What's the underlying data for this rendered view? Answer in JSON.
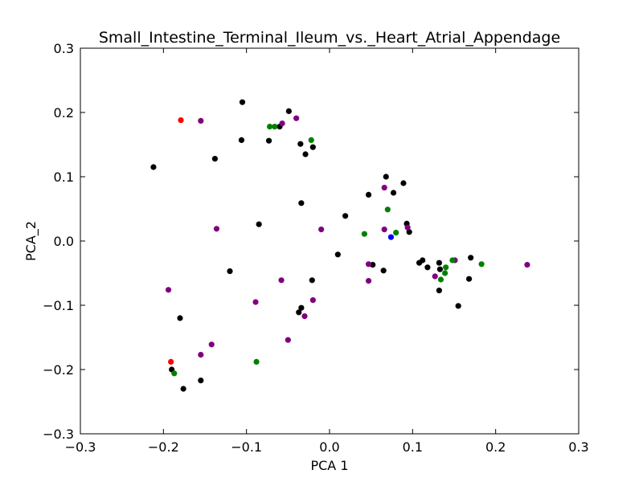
{
  "chart_data": {
    "type": "scatter",
    "title": "Small_Intestine_Terminal_Ileum_vs._Heart_Atrial_Appendage",
    "xlabel": "PCA 1",
    "ylabel": "PCA_2",
    "xlim": [
      -0.3,
      0.3
    ],
    "ylim": [
      -0.3,
      0.3
    ],
    "xticks": [
      -0.3,
      -0.2,
      -0.1,
      0.0,
      0.1,
      0.2,
      0.3
    ],
    "yticks": [
      -0.3,
      -0.2,
      -0.1,
      0.0,
      0.1,
      0.2,
      0.3
    ],
    "xtick_labels": [
      "−0.3",
      "−0.2",
      "−0.1",
      "0.0",
      "0.1",
      "0.2",
      "0.3"
    ],
    "ytick_labels": [
      "−0.3",
      "−0.2",
      "−0.1",
      "0.0",
      "0.1",
      "0.2",
      "0.3"
    ],
    "grid": false,
    "legend": "none",
    "series": [
      {
        "color": "#000000",
        "points": [
          [
            -0.105,
            0.216
          ],
          [
            -0.049,
            0.202
          ],
          [
            -0.06,
            0.178
          ],
          [
            -0.073,
            0.156
          ],
          [
            -0.106,
            0.157
          ],
          [
            -0.035,
            0.151
          ],
          [
            -0.02,
            0.146
          ],
          [
            -0.029,
            0.135
          ],
          [
            -0.138,
            0.128
          ],
          [
            -0.212,
            0.115
          ],
          [
            0.068,
            0.1
          ],
          [
            0.089,
            0.09
          ],
          [
            0.077,
            0.075
          ],
          [
            0.047,
            0.072
          ],
          [
            -0.034,
            0.059
          ],
          [
            0.019,
            0.039
          ],
          [
            -0.085,
            0.026
          ],
          [
            0.093,
            0.027
          ],
          [
            0.096,
            0.014
          ],
          [
            0.01,
            -0.021
          ],
          [
            0.17,
            -0.026
          ],
          [
            0.112,
            -0.03
          ],
          [
            0.108,
            -0.034
          ],
          [
            0.132,
            -0.034
          ],
          [
            0.052,
            -0.037
          ],
          [
            0.118,
            -0.041
          ],
          [
            0.133,
            -0.044
          ],
          [
            0.065,
            -0.046
          ],
          [
            -0.12,
            -0.047
          ],
          [
            0.168,
            -0.059
          ],
          [
            -0.021,
            -0.061
          ],
          [
            0.132,
            -0.077
          ],
          [
            0.155,
            -0.101
          ],
          [
            -0.034,
            -0.104
          ],
          [
            -0.037,
            -0.111
          ],
          [
            -0.18,
            -0.12
          ],
          [
            -0.19,
            -0.2
          ],
          [
            -0.155,
            -0.217
          ],
          [
            -0.176,
            -0.23
          ]
        ]
      },
      {
        "color": "#800080",
        "points": [
          [
            -0.155,
            0.187
          ],
          [
            -0.04,
            0.191
          ],
          [
            -0.057,
            0.183
          ],
          [
            0.066,
            0.083
          ],
          [
            -0.136,
            0.019
          ],
          [
            -0.01,
            0.018
          ],
          [
            0.066,
            0.018
          ],
          [
            0.094,
            0.021
          ],
          [
            0.047,
            -0.036
          ],
          [
            0.151,
            -0.03
          ],
          [
            0.238,
            -0.037
          ],
          [
            0.127,
            -0.055
          ],
          [
            0.047,
            -0.062
          ],
          [
            -0.058,
            -0.061
          ],
          [
            -0.194,
            -0.076
          ],
          [
            -0.089,
            -0.095
          ],
          [
            -0.02,
            -0.092
          ],
          [
            -0.03,
            -0.117
          ],
          [
            -0.05,
            -0.154
          ],
          [
            -0.142,
            -0.161
          ],
          [
            -0.155,
            -0.177
          ]
        ]
      },
      {
        "color": "#008000",
        "points": [
          [
            -0.072,
            0.178
          ],
          [
            -0.066,
            0.178
          ],
          [
            -0.022,
            0.157
          ],
          [
            0.07,
            0.049
          ],
          [
            0.08,
            0.013
          ],
          [
            0.042,
            0.011
          ],
          [
            0.14,
            -0.041
          ],
          [
            0.148,
            -0.03
          ],
          [
            0.183,
            -0.036
          ],
          [
            0.139,
            -0.05
          ],
          [
            0.134,
            -0.06
          ],
          [
            -0.088,
            -0.188
          ],
          [
            -0.187,
            -0.206
          ]
        ]
      },
      {
        "color": "#ff0000",
        "points": [
          [
            -0.179,
            0.188
          ],
          [
            -0.191,
            -0.188
          ]
        ]
      },
      {
        "color": "#0000ff",
        "points": [
          [
            0.074,
            0.006
          ]
        ]
      }
    ]
  }
}
